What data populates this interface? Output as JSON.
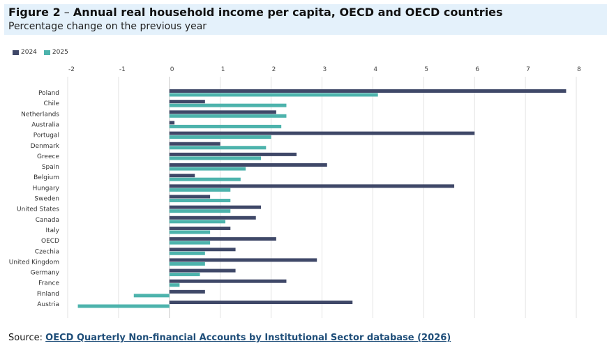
{
  "header": {
    "title_prefix": "Figure 2",
    "title_dash": " – ",
    "title_main": "Annual real household income per capita, OECD and OECD countries",
    "subtitle": "Percentage change on the previous year"
  },
  "legend": {
    "items": [
      {
        "label": "2024",
        "color": "#3f4868"
      },
      {
        "label": "2025",
        "color": "#4db3ac"
      }
    ]
  },
  "source": {
    "prefix": "Source: ",
    "link_text": "OECD Quarterly Non-financial Accounts by Institutional Sector database (2026)"
  },
  "chart_data": {
    "type": "bar",
    "orientation": "horizontal",
    "title": "Annual real household income per capita, OECD and OECD countries",
    "subtitle": "Percentage change on the previous year",
    "xlim": [
      -2,
      8
    ],
    "xticks": [
      "-2",
      "-1",
      "0",
      "1",
      "2",
      "3",
      "4",
      "5",
      "6",
      "7",
      "8"
    ],
    "grid": true,
    "legend_position": "top-left",
    "categories": [
      "Poland",
      "Chile",
      "Netherlands",
      "Australia",
      "Portugal",
      "Denmark",
      "Greece",
      "Spain",
      "Belgium",
      "Hungary",
      "Sweden",
      "United States",
      "Canada",
      "Italy",
      "OECD",
      "Czechia",
      "United Kingdom",
      "Germany",
      "France",
      "Finland",
      "Austria"
    ],
    "series": [
      {
        "name": "2024",
        "color": "#3f4868",
        "values": [
          7.8,
          0.7,
          2.1,
          0.1,
          6.0,
          1.0,
          2.5,
          3.1,
          0.5,
          5.6,
          0.8,
          1.8,
          1.7,
          1.2,
          2.1,
          1.3,
          2.9,
          1.3,
          2.3,
          0.7,
          3.6
        ]
      },
      {
        "name": "2025",
        "color": "#4db3ac",
        "values": [
          4.1,
          2.3,
          2.3,
          2.2,
          2.0,
          1.9,
          1.8,
          1.5,
          1.4,
          1.2,
          1.2,
          1.2,
          1.1,
          0.8,
          0.8,
          0.7,
          0.7,
          0.6,
          0.2,
          -0.7,
          -1.8
        ]
      }
    ]
  }
}
